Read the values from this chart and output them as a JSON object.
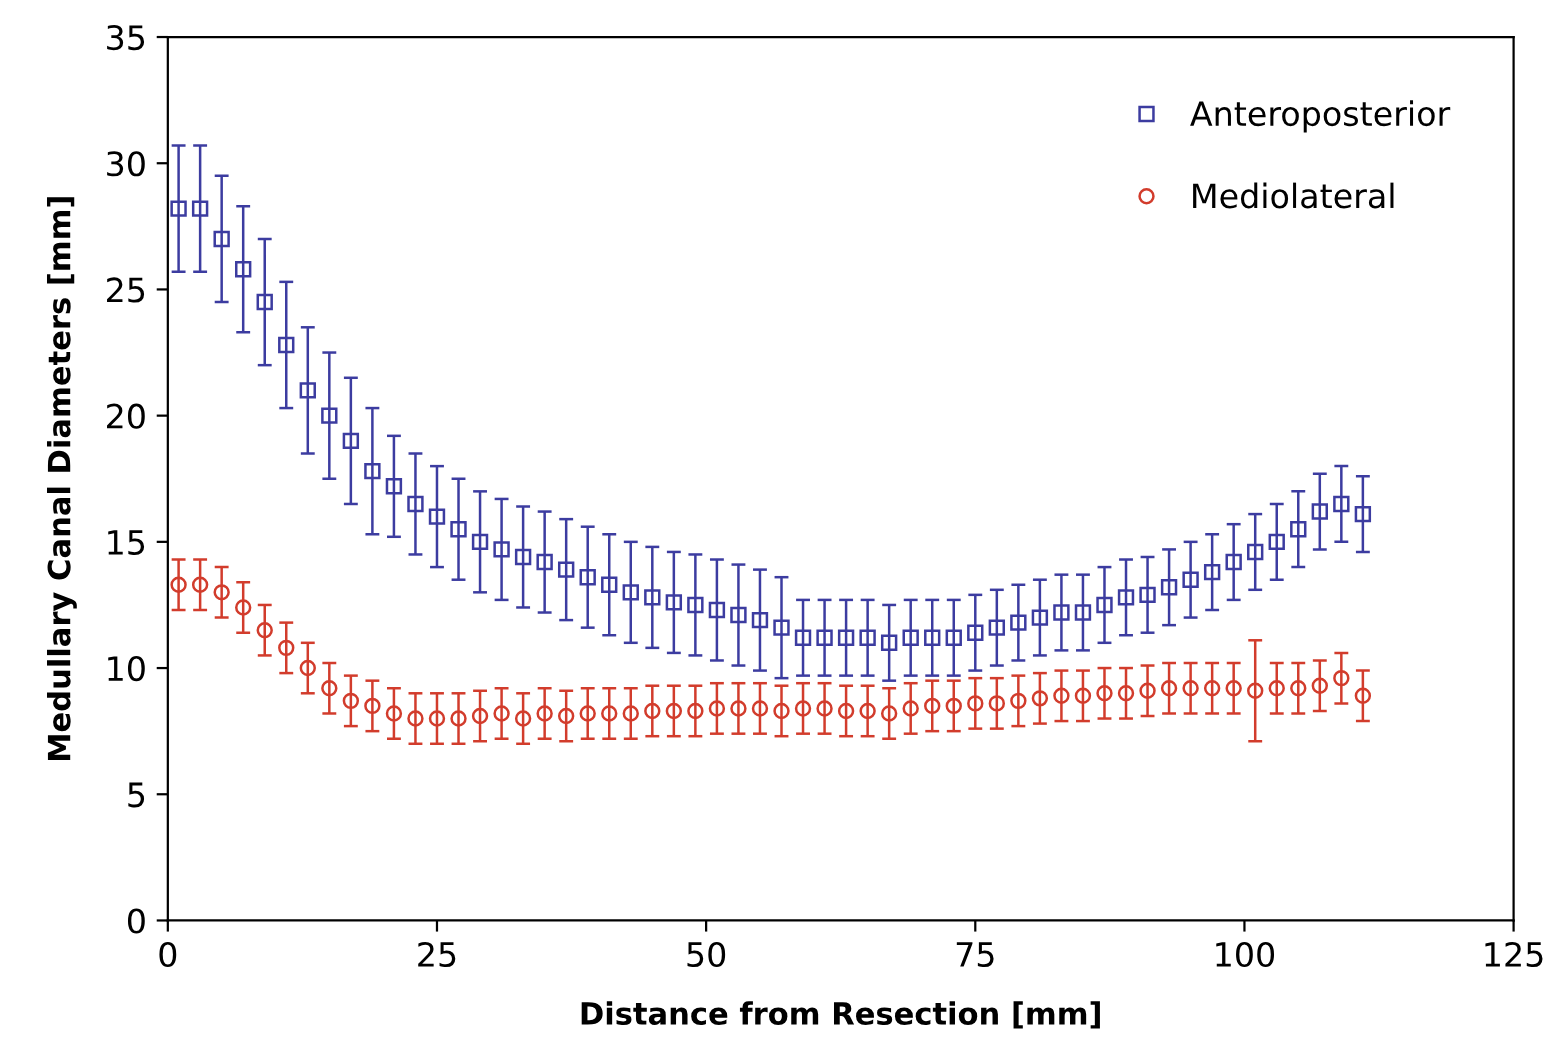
{
  "chart_data": {
    "type": "scatter",
    "xlabel": "Distance from Resection [mm]",
    "ylabel": "Medullary Canal Diameters [mm]",
    "x": [
      1,
      3,
      5,
      7,
      9,
      11,
      13,
      15,
      17,
      19,
      21,
      23,
      25,
      27,
      29,
      31,
      33,
      35,
      37,
      39,
      41,
      43,
      45,
      47,
      49,
      51,
      53,
      55,
      57,
      59,
      61,
      63,
      65,
      67,
      69,
      71,
      73,
      75,
      77,
      79,
      81,
      83,
      85,
      87,
      89,
      91,
      93,
      95,
      97,
      99,
      101,
      103,
      105,
      107,
      109,
      111
    ],
    "series": [
      {
        "name": "Anteroposterior",
        "color": "#3c3ca0",
        "marker": "square",
        "values": [
          28.2,
          28.2,
          27.0,
          25.8,
          24.5,
          22.8,
          21.0,
          20.0,
          19.0,
          17.8,
          17.2,
          16.5,
          16.0,
          15.5,
          15.0,
          14.7,
          14.4,
          14.2,
          13.9,
          13.6,
          13.3,
          13.0,
          12.8,
          12.6,
          12.5,
          12.3,
          12.1,
          11.9,
          11.6,
          11.2,
          11.2,
          11.2,
          11.2,
          11.0,
          11.2,
          11.2,
          11.2,
          11.4,
          11.6,
          11.8,
          12.0,
          12.2,
          12.2,
          12.5,
          12.8,
          12.9,
          13.2,
          13.5,
          13.8,
          14.2,
          14.6,
          15.0,
          15.5,
          16.2,
          16.5,
          16.1
        ],
        "errors": [
          2.5,
          2.5,
          2.5,
          2.5,
          2.5,
          2.5,
          2.5,
          2.5,
          2.5,
          2.5,
          2.0,
          2.0,
          2.0,
          2.0,
          2.0,
          2.0,
          2.0,
          2.0,
          2.0,
          2.0,
          2.0,
          2.0,
          2.0,
          2.0,
          2.0,
          2.0,
          2.0,
          2.0,
          2.0,
          1.5,
          1.5,
          1.5,
          1.5,
          1.5,
          1.5,
          1.5,
          1.5,
          1.5,
          1.5,
          1.5,
          1.5,
          1.5,
          1.5,
          1.5,
          1.5,
          1.5,
          1.5,
          1.5,
          1.5,
          1.5,
          1.5,
          1.5,
          1.5,
          1.5,
          1.5,
          1.5
        ]
      },
      {
        "name": "Mediolateral",
        "color": "#d23c2c",
        "marker": "circle",
        "values": [
          13.3,
          13.3,
          13.0,
          12.4,
          11.5,
          10.8,
          10.0,
          9.2,
          8.7,
          8.5,
          8.2,
          8.0,
          8.0,
          8.0,
          8.1,
          8.2,
          8.0,
          8.2,
          8.1,
          8.2,
          8.2,
          8.2,
          8.3,
          8.3,
          8.3,
          8.4,
          8.4,
          8.4,
          8.3,
          8.4,
          8.4,
          8.3,
          8.3,
          8.2,
          8.4,
          8.5,
          8.5,
          8.6,
          8.6,
          8.7,
          8.8,
          8.9,
          8.9,
          9.0,
          9.0,
          9.1,
          9.2,
          9.2,
          9.2,
          9.2,
          9.1,
          9.2,
          9.2,
          9.3,
          9.6,
          8.9
        ],
        "errors": [
          1.0,
          1.0,
          1.0,
          1.0,
          1.0,
          1.0,
          1.0,
          1.0,
          1.0,
          1.0,
          1.0,
          1.0,
          1.0,
          1.0,
          1.0,
          1.0,
          1.0,
          1.0,
          1.0,
          1.0,
          1.0,
          1.0,
          1.0,
          1.0,
          1.0,
          1.0,
          1.0,
          1.0,
          1.0,
          1.0,
          1.0,
          1.0,
          1.0,
          1.0,
          1.0,
          1.0,
          1.0,
          1.0,
          1.0,
          1.0,
          1.0,
          1.0,
          1.0,
          1.0,
          1.0,
          1.0,
          1.0,
          1.0,
          1.0,
          1.0,
          2.0,
          1.0,
          1.0,
          1.0,
          1.0,
          1.0
        ]
      }
    ],
    "xlim": [
      0,
      125
    ],
    "xticks": [
      0,
      25,
      50,
      75,
      100,
      125
    ],
    "ylim": [
      0,
      35
    ],
    "yticks": [
      0,
      5,
      10,
      15,
      20,
      25,
      30,
      35
    ],
    "grid": false,
    "legend": "top right"
  }
}
